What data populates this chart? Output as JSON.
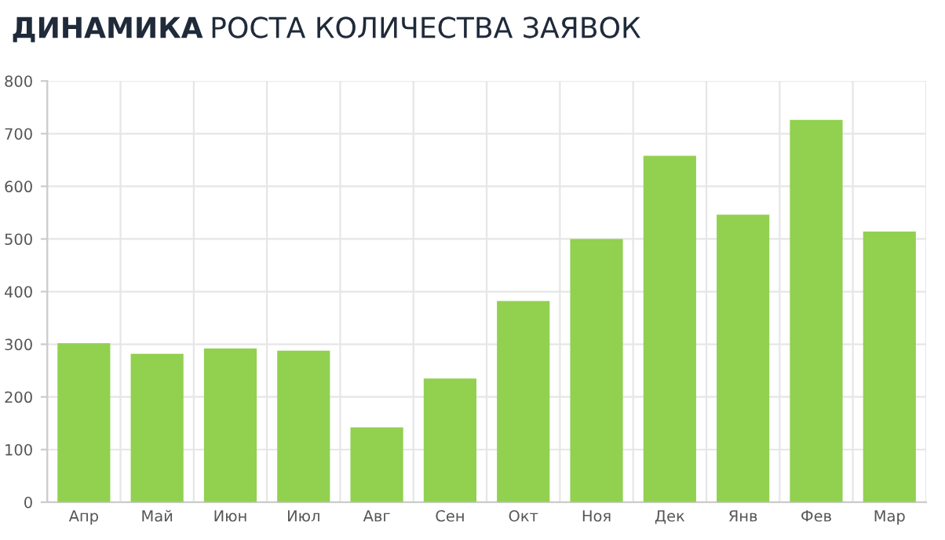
{
  "chart_data": {
    "type": "bar",
    "title": "ДИНАМИКА РОСТА КОЛИЧЕСТВА ЗАЯВОК",
    "categories": [
      "Апр",
      "Май",
      "Июн",
      "Июл",
      "Авг",
      "Сен",
      "Окт",
      "Ноя",
      "Дек",
      "Янв",
      "Фев",
      "Мар"
    ],
    "values": [
      302,
      282,
      292,
      288,
      142,
      235,
      382,
      500,
      658,
      546,
      726,
      514
    ],
    "color": "#92d050",
    "ylim": [
      0,
      800
    ],
    "yticks": [
      0,
      100,
      200,
      300,
      400,
      500,
      600,
      700,
      800
    ],
    "grid": true
  }
}
